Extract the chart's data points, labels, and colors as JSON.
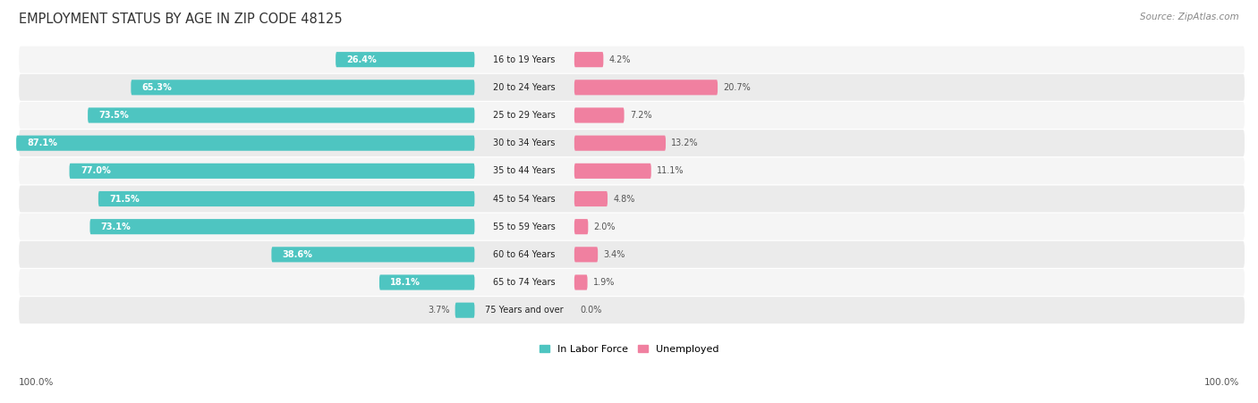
{
  "title": "EMPLOYMENT STATUS BY AGE IN ZIP CODE 48125",
  "source": "Source: ZipAtlas.com",
  "categories": [
    "16 to 19 Years",
    "20 to 24 Years",
    "25 to 29 Years",
    "30 to 34 Years",
    "35 to 44 Years",
    "45 to 54 Years",
    "55 to 59 Years",
    "60 to 64 Years",
    "65 to 74 Years",
    "75 Years and over"
  ],
  "labor_force": [
    26.4,
    65.3,
    73.5,
    87.1,
    77.0,
    71.5,
    73.1,
    38.6,
    18.1,
    3.7
  ],
  "unemployed": [
    4.2,
    20.7,
    7.2,
    13.2,
    11.1,
    4.8,
    2.0,
    3.4,
    1.9,
    0.0
  ],
  "labor_color": "#4ec5c1",
  "unemployed_color": "#f080a0",
  "row_bg_light": "#f5f5f5",
  "row_bg_dark": "#ebebeb",
  "label_white": "#ffffff",
  "label_dark": "#555555",
  "axis_label_left": "100.0%",
  "axis_label_right": "100.0%",
  "legend_labor": "In Labor Force",
  "legend_unemployed": "Unemployed",
  "title_color": "#333333",
  "source_color": "#888888"
}
